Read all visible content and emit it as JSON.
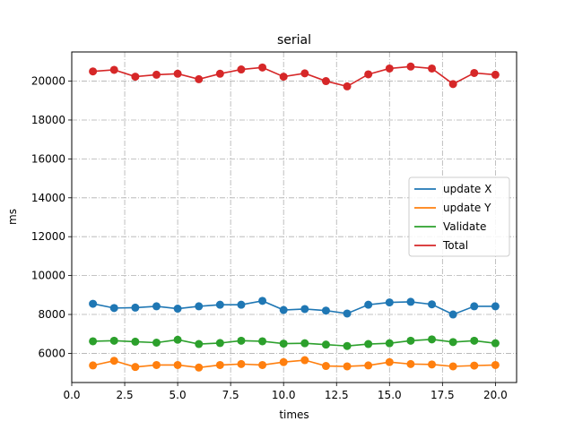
{
  "chart_data": {
    "type": "line",
    "title": "serial",
    "xlabel": "times",
    "ylabel": "ms",
    "xlim": [
      0,
      21
    ],
    "ylim": [
      4500,
      21500
    ],
    "xticks": [
      0.0,
      2.5,
      5.0,
      7.5,
      10.0,
      12.5,
      15.0,
      17.5,
      20.0
    ],
    "xtick_labels": [
      "0.0",
      "2.5",
      "5.0",
      "7.5",
      "10.0",
      "12.5",
      "15.0",
      "17.5",
      "20.0"
    ],
    "yticks": [
      6000,
      8000,
      10000,
      12000,
      14000,
      16000,
      18000,
      20000
    ],
    "ytick_labels": [
      "6000",
      "8000",
      "10000",
      "12000",
      "14000",
      "16000",
      "18000",
      "20000"
    ],
    "grid": true,
    "legend_position": "center-right",
    "x": [
      1,
      2,
      3,
      4,
      5,
      6,
      7,
      8,
      9,
      10,
      11,
      12,
      13,
      14,
      15,
      16,
      17,
      18,
      19,
      20
    ],
    "series": [
      {
        "name": "update X",
        "color": "#1f77b4",
        "values": [
          8550,
          8330,
          8350,
          8420,
          8300,
          8420,
          8500,
          8500,
          8700,
          8230,
          8280,
          8200,
          8050,
          8500,
          8620,
          8650,
          8520,
          8000,
          8420,
          8420
        ]
      },
      {
        "name": "update Y",
        "color": "#ff7f0e",
        "values": [
          5380,
          5620,
          5300,
          5400,
          5400,
          5270,
          5400,
          5450,
          5400,
          5550,
          5650,
          5350,
          5330,
          5380,
          5550,
          5450,
          5430,
          5330,
          5370,
          5400
        ]
      },
      {
        "name": "Validate",
        "color": "#2ca02c",
        "values": [
          6620,
          6650,
          6600,
          6550,
          6700,
          6480,
          6530,
          6650,
          6620,
          6500,
          6520,
          6450,
          6380,
          6480,
          6520,
          6650,
          6720,
          6580,
          6650,
          6520
        ]
      },
      {
        "name": "Total",
        "color": "#d62728",
        "values": [
          20500,
          20580,
          20230,
          20330,
          20380,
          20100,
          20380,
          20600,
          20700,
          20230,
          20400,
          20000,
          19730,
          20350,
          20650,
          20750,
          20650,
          19850,
          20420,
          20330
        ]
      }
    ]
  }
}
